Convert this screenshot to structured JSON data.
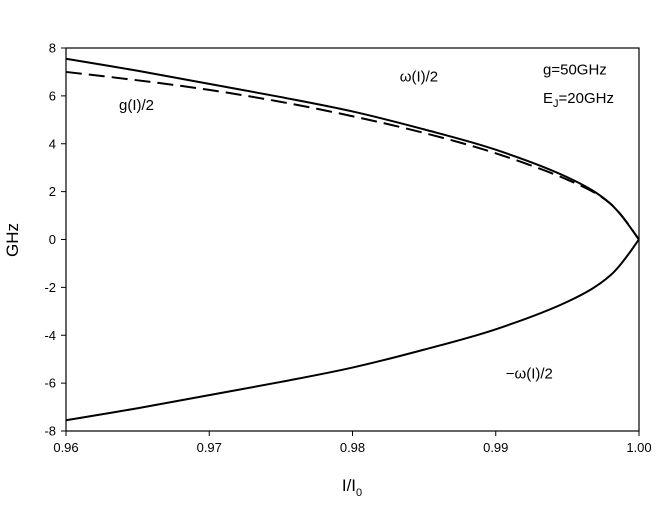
{
  "chart_data": {
    "type": "line",
    "xlabel": "I/I",
    "xlabel_sub": "0",
    "ylabel": "GHz",
    "xlim": [
      0.96,
      1.0
    ],
    "ylim": [
      -8,
      8
    ],
    "x_ticks": [
      "0.96",
      "0.97",
      "0.98",
      "0.99",
      "1.00"
    ],
    "y_ticks": [
      "-8",
      "-6",
      "-4",
      "-2",
      "0",
      "2",
      "4",
      "6",
      "8"
    ],
    "grid": false,
    "series": [
      {
        "name": "ω(I)/2",
        "style": "solid",
        "x": [
          0.96,
          0.965,
          0.97,
          0.975,
          0.98,
          0.985,
          0.99,
          0.995,
          0.998,
          1.0
        ],
        "y": [
          7.55,
          7.05,
          6.5,
          5.95,
          5.35,
          4.6,
          3.75,
          2.6,
          1.5,
          0.0
        ]
      },
      {
        "name": "g(I)/2",
        "style": "dashed",
        "x": [
          0.96,
          0.965,
          0.97,
          0.975,
          0.98,
          0.985,
          0.99,
          0.995,
          0.998,
          1.0
        ],
        "y": [
          7.0,
          6.65,
          6.25,
          5.75,
          5.15,
          4.45,
          3.6,
          2.5,
          1.5,
          0.0
        ]
      },
      {
        "name": "-ω(I)/2",
        "style": "solid",
        "x": [
          0.96,
          0.965,
          0.97,
          0.975,
          0.98,
          0.985,
          0.99,
          0.995,
          0.998,
          1.0
        ],
        "y": [
          -7.55,
          -7.05,
          -6.5,
          -5.95,
          -5.35,
          -4.6,
          -3.75,
          -2.6,
          -1.5,
          0.0
        ]
      }
    ],
    "annotations": [
      {
        "text": "ω(I)/2",
        "x": 0.9833,
        "y": 6.6
      },
      {
        "text": "g(I)/2",
        "x": 0.9637,
        "y": 5.4
      },
      {
        "text": "−ω(I)/2",
        "x": 0.9907,
        "y": -5.8
      },
      {
        "text": "g=50GHz",
        "x": 0.9933,
        "y": 6.9
      },
      {
        "text": "E",
        "sub": "J",
        "suffix": "=20GHz",
        "x": 0.9933,
        "y": 5.7
      }
    ]
  }
}
